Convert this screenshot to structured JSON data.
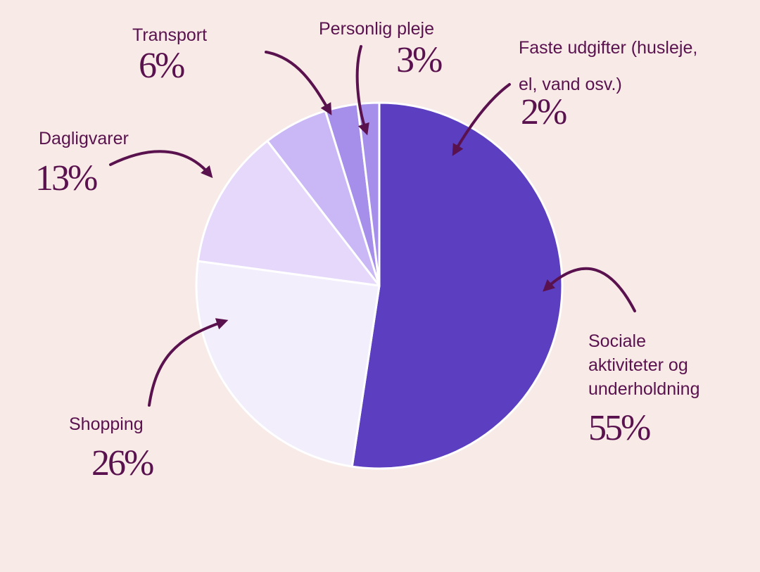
{
  "chart_data": {
    "type": "pie",
    "title": "",
    "slices": [
      {
        "label": "Sociale aktiviteter og underholdning",
        "value": 55,
        "display": "55%",
        "color": "#5c3fc0"
      },
      {
        "label": "Shopping",
        "value": 26,
        "display": "26%",
        "color": "#f3eefc"
      },
      {
        "label": "Dagligvarer",
        "value": 13,
        "display": "13%",
        "color": "#e5d8fb"
      },
      {
        "label": "Transport",
        "value": 6,
        "display": "6%",
        "color": "#cab8f6"
      },
      {
        "label": "Personlig pleje",
        "value": 3,
        "display": "3%",
        "color": "#a68eeb"
      },
      {
        "label": "Faste udgifter (husleje, el, vand osv.)",
        "value": 2,
        "display": "2%",
        "color": "#a68eeb"
      }
    ],
    "slice_border_color": "#ffffff",
    "arrow_color": "#5a124e",
    "text_color": "#5a124e",
    "background_color": "#f7eae7"
  },
  "labels": {
    "social": {
      "line1": "Sociale",
      "line2": "aktiviteter og",
      "line3": "underholdning"
    },
    "shopping": "Shopping",
    "groceries": "Dagligvarer",
    "transport": "Transport",
    "personal": "Personlig pleje",
    "fixed": {
      "line1": "Faste udgifter (husleje,",
      "line2": "el, vand osv.)"
    }
  }
}
